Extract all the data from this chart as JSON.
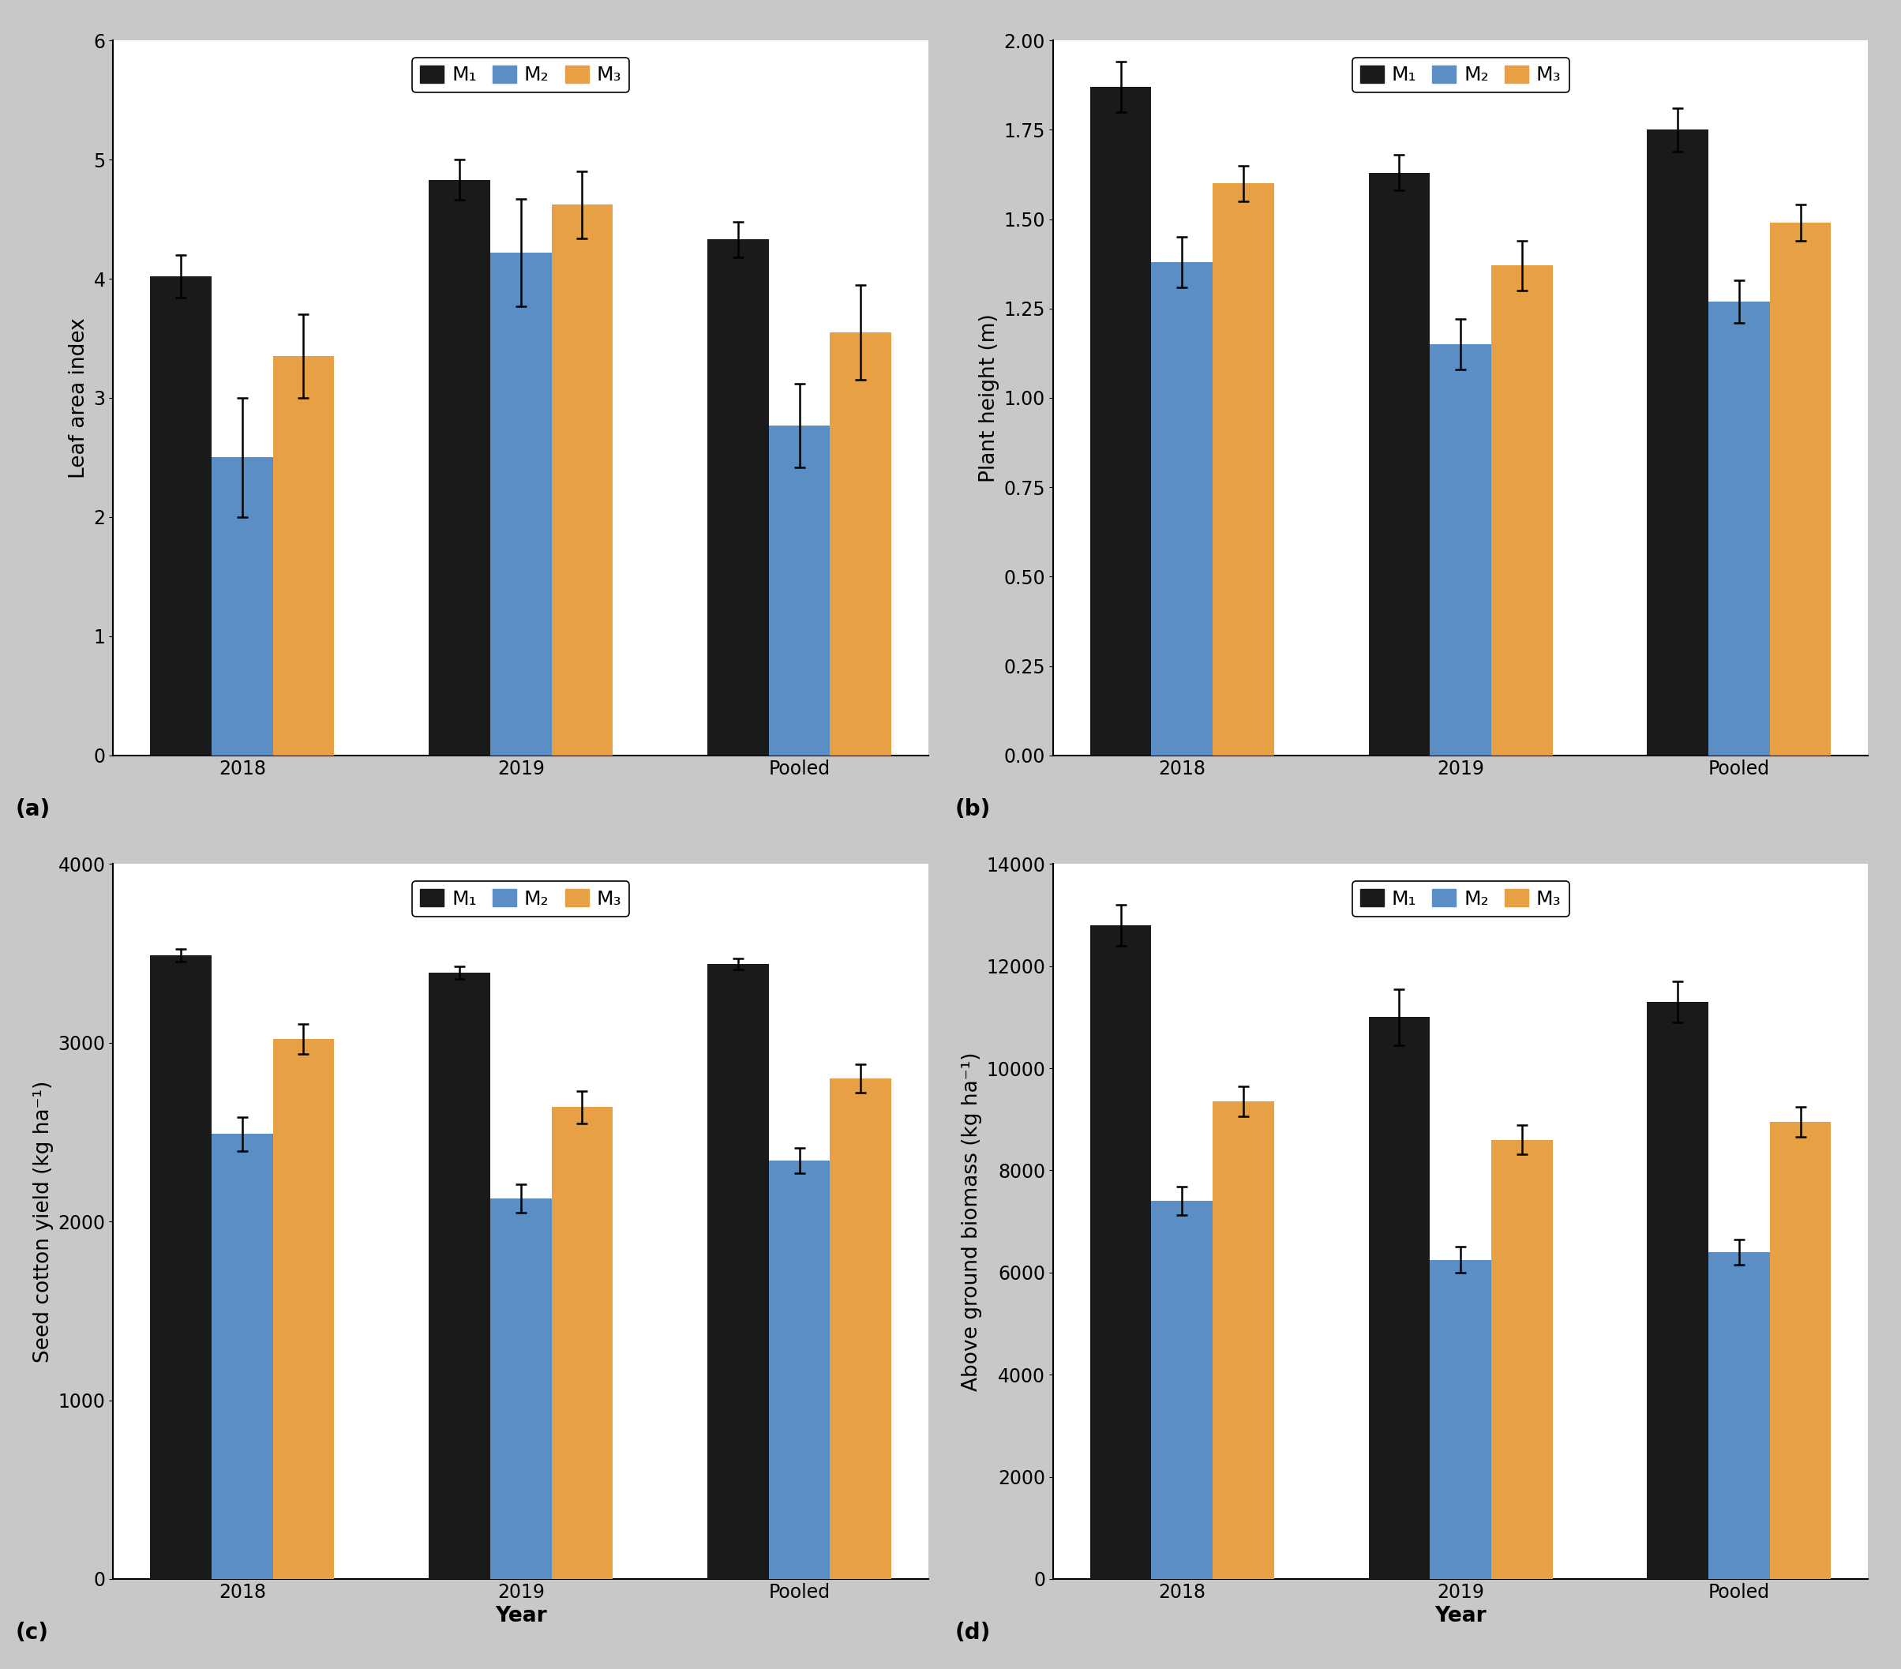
{
  "subplot_a": {
    "title": "(a)",
    "ylabel": "Leaf area index",
    "xlabel": "",
    "categories": [
      "2018",
      "2019",
      "Pooled"
    ],
    "M1_values": [
      4.02,
      4.83,
      4.33
    ],
    "M2_values": [
      2.5,
      4.22,
      2.77
    ],
    "M3_values": [
      3.35,
      4.62,
      3.55
    ],
    "M1_errors": [
      0.18,
      0.17,
      0.15
    ],
    "M2_errors": [
      0.5,
      0.45,
      0.35
    ],
    "M3_errors": [
      0.35,
      0.28,
      0.4
    ],
    "ylim": [
      0,
      6
    ],
    "yticks": [
      0,
      1,
      2,
      3,
      4,
      5,
      6
    ],
    "legend_loc": "upper center"
  },
  "subplot_b": {
    "title": "(b)",
    "ylabel": "Plant height (m)",
    "xlabel": "",
    "categories": [
      "2018",
      "2019",
      "Pooled"
    ],
    "M1_values": [
      1.87,
      1.63,
      1.75
    ],
    "M2_values": [
      1.38,
      1.15,
      1.27
    ],
    "M3_values": [
      1.6,
      1.37,
      1.49
    ],
    "M1_errors": [
      0.07,
      0.05,
      0.06
    ],
    "M2_errors": [
      0.07,
      0.07,
      0.06
    ],
    "M3_errors": [
      0.05,
      0.07,
      0.05
    ],
    "ylim": [
      0,
      2
    ],
    "yticks": [
      0,
      0.25,
      0.5,
      0.75,
      1.0,
      1.25,
      1.5,
      1.75,
      2.0
    ],
    "legend_loc": "upper center"
  },
  "subplot_c": {
    "title": "(c)",
    "ylabel": "Seed cotton yield (kg ha⁻¹)",
    "xlabel": "Year",
    "categories": [
      "2018",
      "2019",
      "Pooled"
    ],
    "M1_values": [
      3490,
      3390,
      3440
    ],
    "M2_values": [
      2490,
      2130,
      2340
    ],
    "M3_values": [
      3020,
      2640,
      2800
    ],
    "M1_errors": [
      35,
      35,
      30
    ],
    "M2_errors": [
      95,
      80,
      70
    ],
    "M3_errors": [
      85,
      90,
      80
    ],
    "ylim": [
      0,
      4000
    ],
    "yticks": [
      0,
      1000,
      2000,
      3000,
      4000
    ],
    "legend_loc": "upper center"
  },
  "subplot_d": {
    "title": "(d)",
    "ylabel": "Above ground biomass (kg ha⁻¹)",
    "xlabel": "Year",
    "categories": [
      "2018",
      "2019",
      "Pooled"
    ],
    "M1_values": [
      12800,
      11000,
      11300
    ],
    "M2_values": [
      7400,
      6250,
      6400
    ],
    "M3_values": [
      9350,
      8600,
      8950
    ],
    "M1_errors": [
      400,
      550,
      400
    ],
    "M2_errors": [
      280,
      250,
      250
    ],
    "M3_errors": [
      300,
      280,
      300
    ],
    "ylim": [
      0,
      14000
    ],
    "yticks": [
      0,
      2000,
      4000,
      6000,
      8000,
      10000,
      12000,
      14000
    ],
    "legend_loc": "upper center"
  },
  "colors": {
    "M1": "#1a1a1a",
    "M2": "#5b8ec4",
    "M3": "#e8a045"
  },
  "bar_width": 0.22,
  "legend_labels": [
    "M₁",
    "M₂",
    "M₃"
  ],
  "title_fontsize": 20,
  "label_fontsize": 19,
  "tick_fontsize": 17,
  "legend_fontsize": 18,
  "capsize": 5,
  "figure_bg": "#c8c8c8"
}
